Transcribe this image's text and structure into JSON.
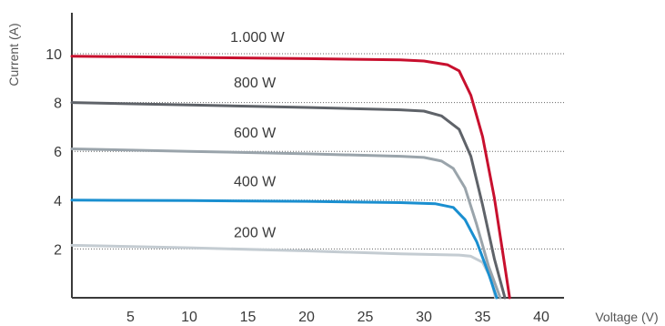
{
  "chart_data": {
    "type": "line",
    "xlabel": "Voltage (V)",
    "ylabel": "Current (A)",
    "xlim": [
      0,
      44
    ],
    "ylim": [
      0,
      11.5
    ],
    "x_ticks": [
      5,
      10,
      15,
      20,
      25,
      30,
      35,
      40
    ],
    "y_ticks": [
      2,
      4,
      6,
      8,
      10
    ],
    "grid": "horizontal dotted",
    "series": [
      {
        "name": "1.000 W",
        "color": "#c8102e",
        "points": [
          [
            0,
            9.9
          ],
          [
            10,
            9.85
          ],
          [
            20,
            9.8
          ],
          [
            28,
            9.75
          ],
          [
            30,
            9.7
          ],
          [
            32,
            9.55
          ],
          [
            33,
            9.3
          ],
          [
            34,
            8.3
          ],
          [
            35,
            6.6
          ],
          [
            36,
            4.1
          ],
          [
            36.8,
            1.6
          ],
          [
            37.3,
            0
          ]
        ]
      },
      {
        "name": "800 W",
        "color": "#5f6369",
        "points": [
          [
            0,
            8.0
          ],
          [
            10,
            7.9
          ],
          [
            20,
            7.8
          ],
          [
            28,
            7.7
          ],
          [
            30,
            7.65
          ],
          [
            31.5,
            7.45
          ],
          [
            33,
            6.9
          ],
          [
            34,
            5.8
          ],
          [
            35,
            3.8
          ],
          [
            36,
            1.6
          ],
          [
            36.9,
            0
          ]
        ]
      },
      {
        "name": "600 W",
        "color": "#9aa4ab",
        "points": [
          [
            0,
            6.1
          ],
          [
            10,
            6.0
          ],
          [
            20,
            5.9
          ],
          [
            28,
            5.8
          ],
          [
            30,
            5.75
          ],
          [
            31.5,
            5.6
          ],
          [
            32.5,
            5.3
          ],
          [
            33.5,
            4.5
          ],
          [
            34.5,
            3.0
          ],
          [
            35.5,
            1.3
          ],
          [
            36.5,
            0
          ]
        ]
      },
      {
        "name": "400 W",
        "color": "#1a8fd0",
        "points": [
          [
            0,
            4.0
          ],
          [
            10,
            3.98
          ],
          [
            20,
            3.95
          ],
          [
            28,
            3.9
          ],
          [
            31,
            3.85
          ],
          [
            32.5,
            3.7
          ],
          [
            33.5,
            3.2
          ],
          [
            34.5,
            2.3
          ],
          [
            35.5,
            1.0
          ],
          [
            36.2,
            0
          ]
        ]
      },
      {
        "name": "200 W",
        "color": "#c4ccd2",
        "points": [
          [
            0,
            2.15
          ],
          [
            10,
            2.05
          ],
          [
            20,
            1.92
          ],
          [
            28,
            1.8
          ],
          [
            33,
            1.75
          ],
          [
            34,
            1.7
          ],
          [
            35,
            1.45
          ],
          [
            35.7,
            0.8
          ],
          [
            36.1,
            0
          ]
        ]
      }
    ],
    "annotations": [
      {
        "text": "1.000 W",
        "x": 13.5,
        "y": 10.7
      },
      {
        "text": "800 W",
        "x": 13.8,
        "y": 8.85
      },
      {
        "text": "600 W",
        "x": 13.8,
        "y": 6.8
      },
      {
        "text": "400 W",
        "x": 13.8,
        "y": 4.8
      },
      {
        "text": "200 W",
        "x": 13.8,
        "y": 2.7
      }
    ]
  }
}
